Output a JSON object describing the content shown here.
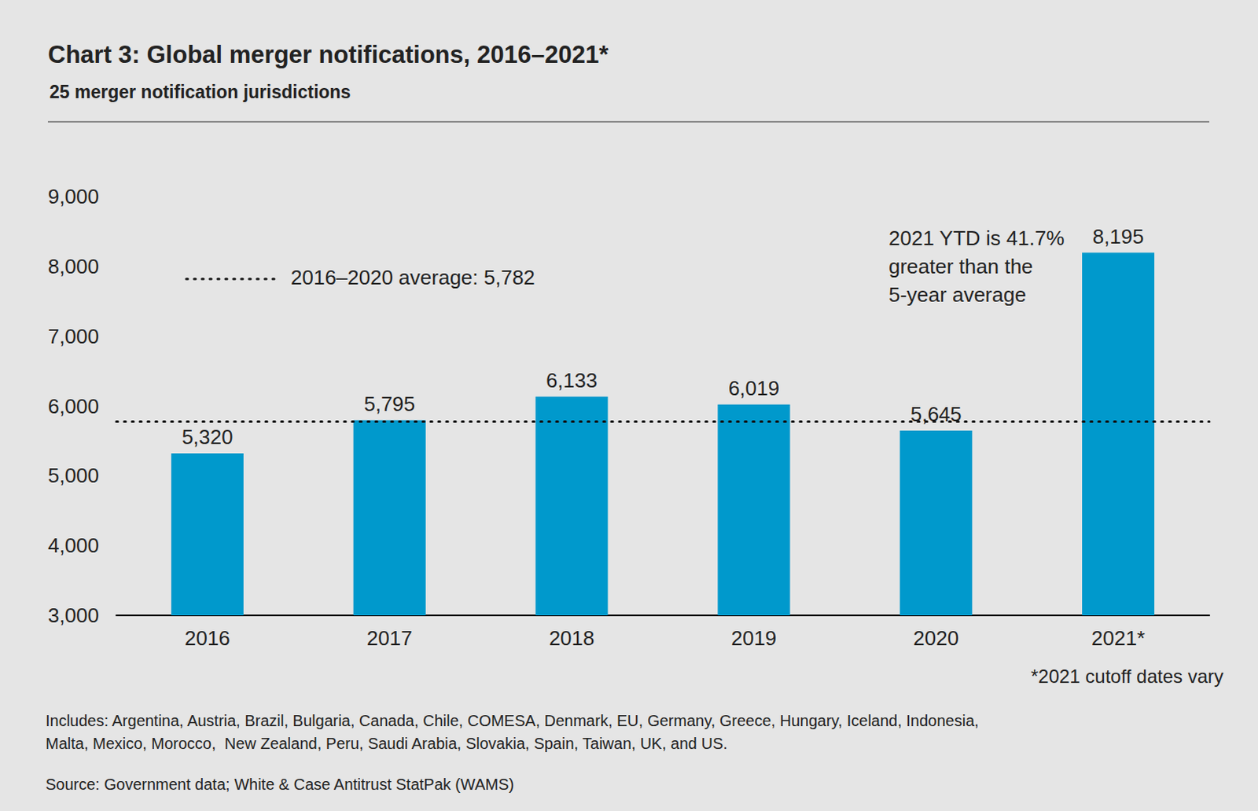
{
  "chart_data": {
    "type": "bar",
    "title": "Chart 3: Global merger notifications, 2016–2021*",
    "subtitle": "25 merger notification jurisdictions",
    "categories": [
      "2016",
      "2017",
      "2018",
      "2019",
      "2020",
      "2021*"
    ],
    "values": [
      5320,
      5795,
      6133,
      6019,
      5645,
      8195
    ],
    "value_labels": [
      "5,320",
      "5,795",
      "6,133",
      "6,019",
      "5,645",
      "8,195"
    ],
    "color": "#0099cc",
    "ylim": [
      3000,
      9000
    ],
    "yticks": [
      {
        "value": 3000,
        "label": "3,000"
      },
      {
        "value": 4000,
        "label": "4,000"
      },
      {
        "value": 5000,
        "label": "5,000"
      },
      {
        "value": 6000,
        "label": "6,000"
      },
      {
        "value": 7000,
        "label": "7,000"
      },
      {
        "value": 8000,
        "label": "8,000"
      },
      {
        "value": 9000,
        "label": "9,000"
      }
    ],
    "grid": false,
    "data_labels": true,
    "reference_line": {
      "value": 5782,
      "label": "2016–2020 average: 5,782",
      "line_style": "dotted"
    },
    "annotation": [
      "2021 YTD is 41.7%",
      "greater than the",
      "5-year average"
    ],
    "footnote": "*2021 cutoff dates vary",
    "includes": [
      "Includes: Argentina, Austria, Brazil, Bulgaria, Canada, Chile, COMESA, Denmark, EU, Germany, Greece, Hungary, Iceland, Indonesia,",
      "Malta, Mexico, Morocco,  New Zealand, Peru, Saudi Arabia, Slovakia, Spain, Taiwan, UK, and US."
    ],
    "source": "Source: Government data; White & Case Antitrust StatPak (WAMS)"
  }
}
